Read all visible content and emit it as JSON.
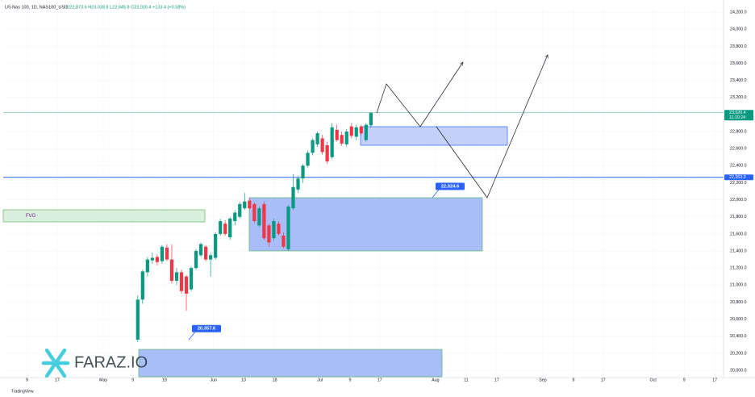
{
  "chart_data": {
    "type": "candlestick",
    "title": "US Nas 100, 1D, NAS100_USD",
    "ohlc_text": "O22,873.6 H23,028.8 L22,845.8 C23,020.4 +133.4 (+0.58%)",
    "up_color": "#089981",
    "down_color": "#f23645",
    "x": [
      0,
      1,
      2,
      3,
      4,
      5,
      6,
      7,
      8,
      9,
      10,
      11,
      12,
      13,
      14,
      15,
      16,
      17,
      18,
      19,
      20,
      21,
      22,
      23,
      24,
      25,
      26,
      27,
      28,
      29,
      30,
      31,
      32,
      33,
      34,
      35,
      36,
      37,
      38,
      39,
      40,
      41,
      42,
      43,
      44,
      45,
      46,
      47,
      48
    ],
    "open": [
      20360,
      20830,
      21150,
      21290,
      21330,
      21280,
      21440,
      21300,
      21050,
      21150,
      21100,
      20950,
      21200,
      21350,
      21450,
      21300,
      21320,
      21600,
      21720,
      21560,
      21750,
      21800,
      21900,
      21990,
      21950,
      21700,
      21950,
      21700,
      21550,
      21720,
      21580,
      21420,
      21900,
      22120,
      22250,
      22400,
      22550,
      22650,
      22720,
      22640,
      22500,
      22820,
      22760,
      22650,
      22860,
      22740,
      22860,
      22700,
      22873.6
    ],
    "high": [
      20880,
      21180,
      21330,
      21380,
      21360,
      21470,
      21480,
      21480,
      21200,
      21180,
      21120,
      21220,
      21420,
      21500,
      21470,
      21380,
      21620,
      21780,
      21760,
      21800,
      21880,
      21980,
      22080,
      22020,
      21970,
      21920,
      21980,
      21720,
      21780,
      21750,
      21620,
      21940,
      22300,
      22280,
      22420,
      22580,
      22720,
      22800,
      22760,
      22680,
      22900,
      22880,
      22800,
      22830,
      22900,
      22880,
      22880,
      22900,
      23028.8
    ],
    "low": [
      20330,
      20780,
      21100,
      21250,
      21230,
      21250,
      21280,
      21020,
      21000,
      20900,
      20700,
      20930,
      21180,
      21330,
      21280,
      21100,
      21300,
      21580,
      21580,
      21530,
      21700,
      21780,
      21880,
      21880,
      21730,
      21680,
      21530,
      21450,
      21520,
      21580,
      21430,
      21400,
      21880,
      22080,
      22200,
      22380,
      22520,
      22620,
      22530,
      22420,
      22480,
      22680,
      22630,
      22620,
      22720,
      22700,
      22760,
      22680,
      22845.8
    ],
    "close": [
      20830,
      21160,
      21300,
      21320,
      21270,
      21450,
      21300,
      21050,
      21150,
      20930,
      20900,
      21200,
      21400,
      21480,
      21300,
      21350,
      21600,
      21750,
      21600,
      21780,
      21850,
      21950,
      21980,
      21900,
      21750,
      21900,
      21550,
      21500,
      21750,
      21600,
      21450,
      21920,
      22150,
      22250,
      22400,
      22550,
      22700,
      22780,
      22560,
      22450,
      22850,
      22700,
      22660,
      22800,
      22750,
      22850,
      22780,
      22880,
      23020.4
    ],
    "xlim": [
      -27.7,
      120.6
    ],
    "xticks": [
      {
        "value": -22.8,
        "label": "9"
      },
      {
        "value": -16.6,
        "label": "17"
      },
      {
        "value": -7.1,
        "label": "May"
      },
      {
        "value": -1.0,
        "label": "9"
      },
      {
        "value": 5.5,
        "label": "19"
      },
      {
        "value": 15.6,
        "label": "Jun"
      },
      {
        "value": 21.8,
        "label": "10"
      },
      {
        "value": 28.2,
        "label": "18"
      },
      {
        "value": 37.5,
        "label": "Jul"
      },
      {
        "value": 43.7,
        "label": "9"
      },
      {
        "value": 49.8,
        "label": "17"
      },
      {
        "value": 61.3,
        "label": "Aug"
      },
      {
        "value": 67.6,
        "label": "11"
      },
      {
        "value": 73.9,
        "label": "17"
      },
      {
        "value": 83.4,
        "label": "Sep"
      },
      {
        "value": 89.7,
        "label": "9"
      },
      {
        "value": 95.8,
        "label": "17"
      },
      {
        "value": 106.1,
        "label": "Oct"
      },
      {
        "value": 112.5,
        "label": "9"
      },
      {
        "value": 118.8,
        "label": "17"
      }
    ],
    "ylim": [
      19914.9,
      24304.7
    ],
    "yticks": [
      {
        "value": 20000,
        "label": "20,000.0"
      },
      {
        "value": 20200,
        "label": "20,200.0"
      },
      {
        "value": 20400,
        "label": "20,400.0"
      },
      {
        "value": 20600,
        "label": "20,600.0"
      },
      {
        "value": 20800,
        "label": "20,800.0"
      },
      {
        "value": 21000,
        "label": "21,000.0"
      },
      {
        "value": 21200,
        "label": "21,200.0"
      },
      {
        "value": 21400,
        "label": "21,400.0"
      },
      {
        "value": 21600,
        "label": "21,600.0"
      },
      {
        "value": 21800,
        "label": "21,800.0"
      },
      {
        "value": 22000,
        "label": "22,000.0"
      },
      {
        "value": 22200,
        "label": "22,200.0"
      },
      {
        "value": 22400,
        "label": "22,400.0"
      },
      {
        "value": 22600,
        "label": "22,600.0"
      },
      {
        "value": 22800,
        "label": "22,800.0"
      },
      {
        "value": 23000,
        "label": "23,000.0"
      },
      {
        "value": 23200,
        "label": "23,200.0"
      },
      {
        "value": 23400,
        "label": "23,400.0"
      },
      {
        "value": 23600,
        "label": "23,600.0"
      },
      {
        "value": 23800,
        "label": "23,800.0"
      },
      {
        "value": 24000,
        "label": "24,000.0"
      },
      {
        "value": 24200,
        "label": "24,200.0"
      }
    ],
    "price_lines": [
      {
        "value": 23020.4,
        "label": "23,020.4",
        "countdown": "11:10:24",
        "color": "#089981"
      },
      {
        "value": 22263.3,
        "label": "22,263.3",
        "color": "#2962ff"
      }
    ],
    "annotations": [
      {
        "value": 22024.6,
        "label": "22,024.6"
      },
      {
        "value": 20357.6,
        "label": "20,357.6"
      }
    ],
    "zone_label": "FVG",
    "watermark": "FARAZ.IO",
    "footer": "TradingView"
  }
}
